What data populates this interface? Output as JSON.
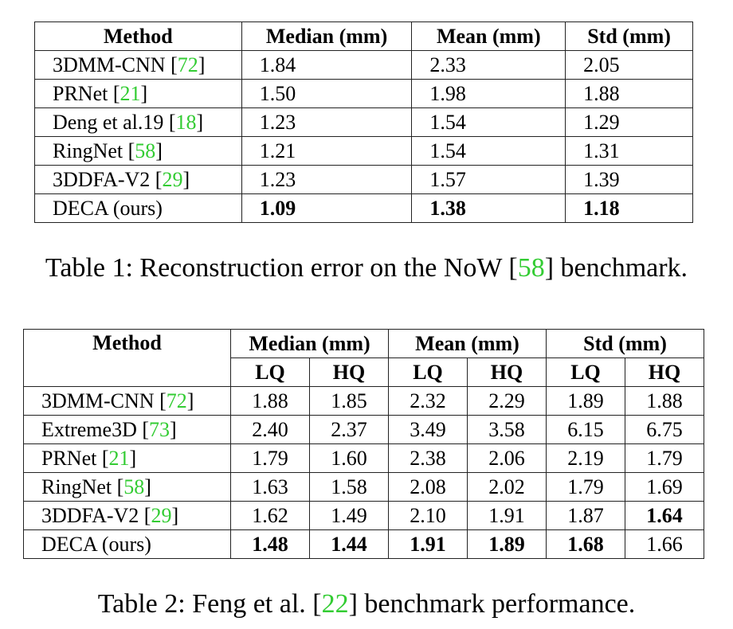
{
  "table1": {
    "headers": [
      "Method",
      "Median (mm)",
      "Mean (mm)",
      "Std (mm)"
    ],
    "rows": [
      {
        "method": "3DMM-CNN [",
        "ref": "72",
        "close": "]",
        "median": "1.84",
        "mean": "2.33",
        "std": "2.05"
      },
      {
        "method": "PRNet [",
        "ref": "21",
        "close": "]",
        "median": "1.50",
        "mean": "1.98",
        "std": "1.88"
      },
      {
        "method": "Deng et al.19 [",
        "ref": "18",
        "close": "]",
        "median": "1.23",
        "mean": "1.54",
        "std": "1.29"
      },
      {
        "method": "RingNet [",
        "ref": "58",
        "close": "]",
        "median": "1.21",
        "mean": "1.54",
        "std": "1.31"
      },
      {
        "method": "3DDFA-V2 [",
        "ref": "29",
        "close": "]",
        "median": "1.23",
        "mean": "1.57",
        "std": "1.39"
      },
      {
        "method": "DECA (ours)",
        "ref": "",
        "close": "",
        "median": "1.09",
        "mean": "1.38",
        "std": "1.18"
      }
    ],
    "caption": {
      "prefix": "Table 1: Reconstruction error on the NoW [",
      "ref": "58",
      "suffix": "] benchmark."
    }
  },
  "table2": {
    "headers": [
      "Method",
      "Median (mm)",
      "Mean (mm)",
      "Std (mm)"
    ],
    "subheaders": [
      "LQ",
      "HQ",
      "LQ",
      "HQ",
      "LQ",
      "HQ"
    ],
    "rows": [
      {
        "method": "3DMM-CNN [",
        "ref": "72",
        "close": "]",
        "values": [
          "1.88",
          "1.85",
          "2.32",
          "2.29",
          "1.89",
          "1.88"
        ]
      },
      {
        "method": "Extreme3D [",
        "ref": "73",
        "close": "]",
        "values": [
          "2.40",
          "2.37",
          "3.49",
          "3.58",
          "6.15",
          "6.75"
        ]
      },
      {
        "method": "PRNet [",
        "ref": "21",
        "close": "]",
        "values": [
          "1.79",
          "1.60",
          "2.38",
          "2.06",
          "2.19",
          "1.79"
        ]
      },
      {
        "method": "RingNet [",
        "ref": "58",
        "close": "]",
        "values": [
          "1.63",
          "1.58",
          "2.08",
          "2.02",
          "1.79",
          "1.69"
        ]
      },
      {
        "method": "3DDFA-V2 [",
        "ref": "29",
        "close": "]",
        "values": [
          "1.62",
          "1.49",
          "2.10",
          "1.91",
          "1.87",
          "1.64"
        ]
      },
      {
        "method": "DECA (ours)",
        "ref": "",
        "close": "",
        "values": [
          "1.48",
          "1.44",
          "1.91",
          "1.89",
          "1.68",
          "1.66"
        ]
      }
    ],
    "caption": {
      "prefix": "Table 2: Feng et al. [",
      "ref": "22",
      "suffix": "] benchmark performance."
    }
  },
  "colors": {
    "reference_link": "#33cc33",
    "text": "#000000",
    "border": "#222222"
  }
}
